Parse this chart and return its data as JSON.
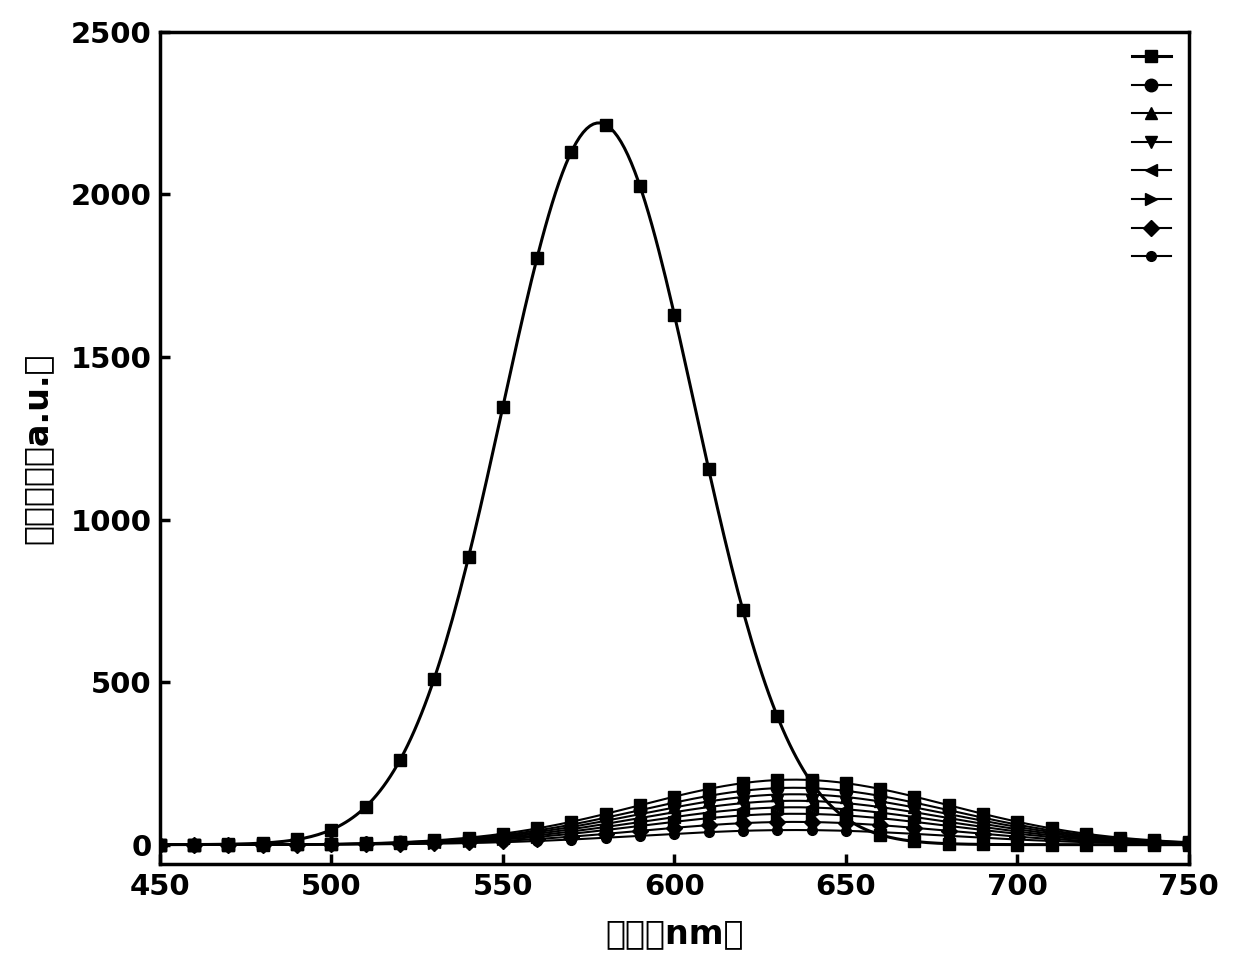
{
  "title": "",
  "xlabel": "波长（nm）",
  "ylabel": "荧光强度（a.u.）",
  "xlim": [
    450,
    750
  ],
  "ylim": [
    -60,
    2500
  ],
  "xticks": [
    450,
    500,
    550,
    600,
    650,
    700,
    750
  ],
  "yticks": [
    0,
    500,
    1000,
    1500,
    2000,
    2500
  ],
  "background_color": "#ffffff",
  "line_color": "#000000",
  "peak_wavelength": 578,
  "peak_intensity": 2220,
  "top_sigma": 28,
  "lower_peak_wl": 635,
  "lower_sigma": 45,
  "lower_amps": [
    200,
    175,
    155,
    135,
    115,
    95,
    70,
    45
  ],
  "markers": [
    "s",
    "o",
    "^",
    "v",
    "<",
    ">",
    "D",
    "o"
  ],
  "marker_sizes": [
    9,
    9,
    9,
    9,
    9,
    9,
    8,
    7
  ],
  "legend_labelspacing": 1.05,
  "legend_handlelength": 2.8
}
